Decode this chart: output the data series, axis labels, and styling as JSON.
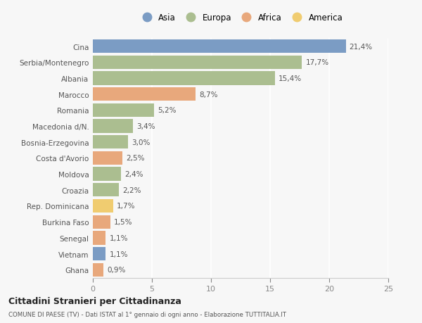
{
  "categories": [
    "Cina",
    "Serbia/Montenegro",
    "Albania",
    "Marocco",
    "Romania",
    "Macedonia d/N.",
    "Bosnia-Erzegovina",
    "Costa d'Avorio",
    "Moldova",
    "Croazia",
    "Rep. Dominicana",
    "Burkina Faso",
    "Senegal",
    "Vietnam",
    "Ghana"
  ],
  "values": [
    21.4,
    17.7,
    15.4,
    8.7,
    5.2,
    3.4,
    3.0,
    2.5,
    2.4,
    2.2,
    1.7,
    1.5,
    1.1,
    1.1,
    0.9
  ],
  "labels": [
    "21,4%",
    "17,7%",
    "15,4%",
    "8,7%",
    "5,2%",
    "3,4%",
    "3,0%",
    "2,5%",
    "2,4%",
    "2,2%",
    "1,7%",
    "1,5%",
    "1,1%",
    "1,1%",
    "0,9%"
  ],
  "colors": [
    "#7b9cc4",
    "#abbe90",
    "#abbe90",
    "#e8a87c",
    "#abbe90",
    "#abbe90",
    "#abbe90",
    "#e8a87c",
    "#abbe90",
    "#abbe90",
    "#f0cc70",
    "#e8a87c",
    "#e8a87c",
    "#7b9cc4",
    "#e8a87c"
  ],
  "legend": [
    {
      "label": "Asia",
      "color": "#7b9cc4"
    },
    {
      "label": "Europa",
      "color": "#abbe90"
    },
    {
      "label": "Africa",
      "color": "#e8a87c"
    },
    {
      "label": "America",
      "color": "#f0cc70"
    }
  ],
  "xlim": [
    0,
    25
  ],
  "xticks": [
    0,
    5,
    10,
    15,
    20,
    25
  ],
  "title1": "Cittadini Stranieri per Cittadinanza",
  "title2": "COMUNE DI PAESE (TV) - Dati ISTAT al 1° gennaio di ogni anno - Elaborazione TUTTITALIA.IT",
  "bg_color": "#f7f7f7",
  "bar_height": 0.85,
  "grid_color": "#ffffff",
  "label_fontsize": 7.5,
  "ytick_fontsize": 7.5,
  "xtick_fontsize": 8.0
}
